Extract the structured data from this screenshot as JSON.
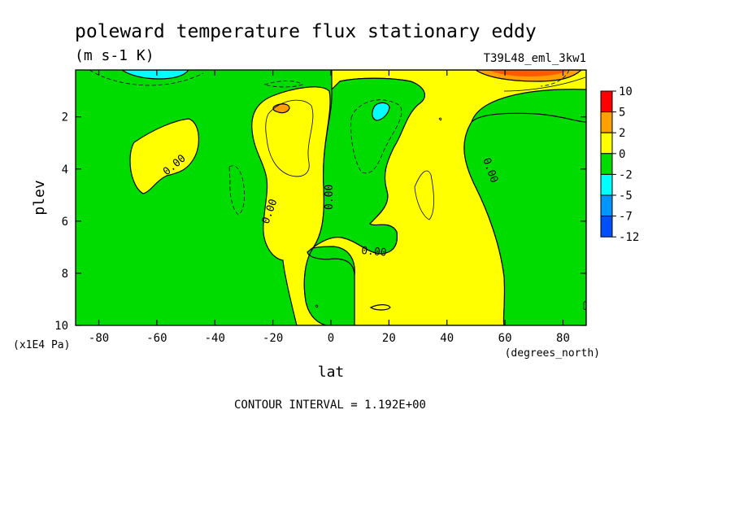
{
  "chart_data": {
    "type": "heatmap",
    "title": "poleward temperature flux stationary eddy",
    "subtitle": "(m s-1 K)",
    "run_label": "T39L48_eml_3kw1",
    "xlabel": "lat",
    "xunits": "(degrees_north)",
    "ylabel": "plev",
    "yunits": "(x1E4 Pa)",
    "xlim": [
      -88,
      88
    ],
    "ylim": [
      10,
      0.2
    ],
    "xticks": [
      -80,
      -60,
      -40,
      -20,
      0,
      20,
      40,
      60,
      80
    ],
    "yticks": [
      2,
      4,
      6,
      8,
      10
    ],
    "contour_label": "0.00",
    "footer": "CONTOUR INTERVAL = 1.192E+00",
    "legend": {
      "levels": [
        "10",
        "5",
        "2",
        "0",
        "-2",
        "-5",
        "-7",
        "-12"
      ],
      "colors": [
        "#ff0000",
        "#ffa000",
        "#ffff00",
        "#00dc00",
        "#00ffff",
        "#0096ff",
        "#0050ff"
      ]
    },
    "regions": [
      {
        "name": "positive-flux-south-midlat",
        "value_range": "0 to 2",
        "lat": [
          -67,
          -47
        ],
        "plev": [
          1.8,
          5.0
        ]
      },
      {
        "name": "positive-flux-tropics-south",
        "value_range": "0 to 2",
        "lat": [
          -25,
          -5
        ],
        "plev": [
          1.0,
          10.0
        ]
      },
      {
        "name": "positive-flux-north",
        "value_range": "0 to 2",
        "lat": [
          0,
          88
        ],
        "plev": [
          0.2,
          10.0
        ]
      },
      {
        "name": "negative-flux-tropics",
        "value_range": "-2 to 0",
        "lat": [
          -5,
          30
        ],
        "plev": [
          0.6,
          10.0
        ]
      },
      {
        "name": "negative-flux-north-polar",
        "value_range": "-2 to 0",
        "lat": [
          48,
          88
        ],
        "plev": [
          1.8,
          10.0
        ]
      },
      {
        "name": "max-flux-near-top-north",
        "value_range": "2 to 10",
        "lat": [
          50,
          80
        ],
        "plev": [
          0.2,
          0.4
        ]
      },
      {
        "name": "min-flux-near-top-south",
        "value_range": "-5 to -2",
        "lat": [
          -76,
          -60
        ],
        "plev": [
          0.2,
          0.5
        ]
      }
    ]
  }
}
